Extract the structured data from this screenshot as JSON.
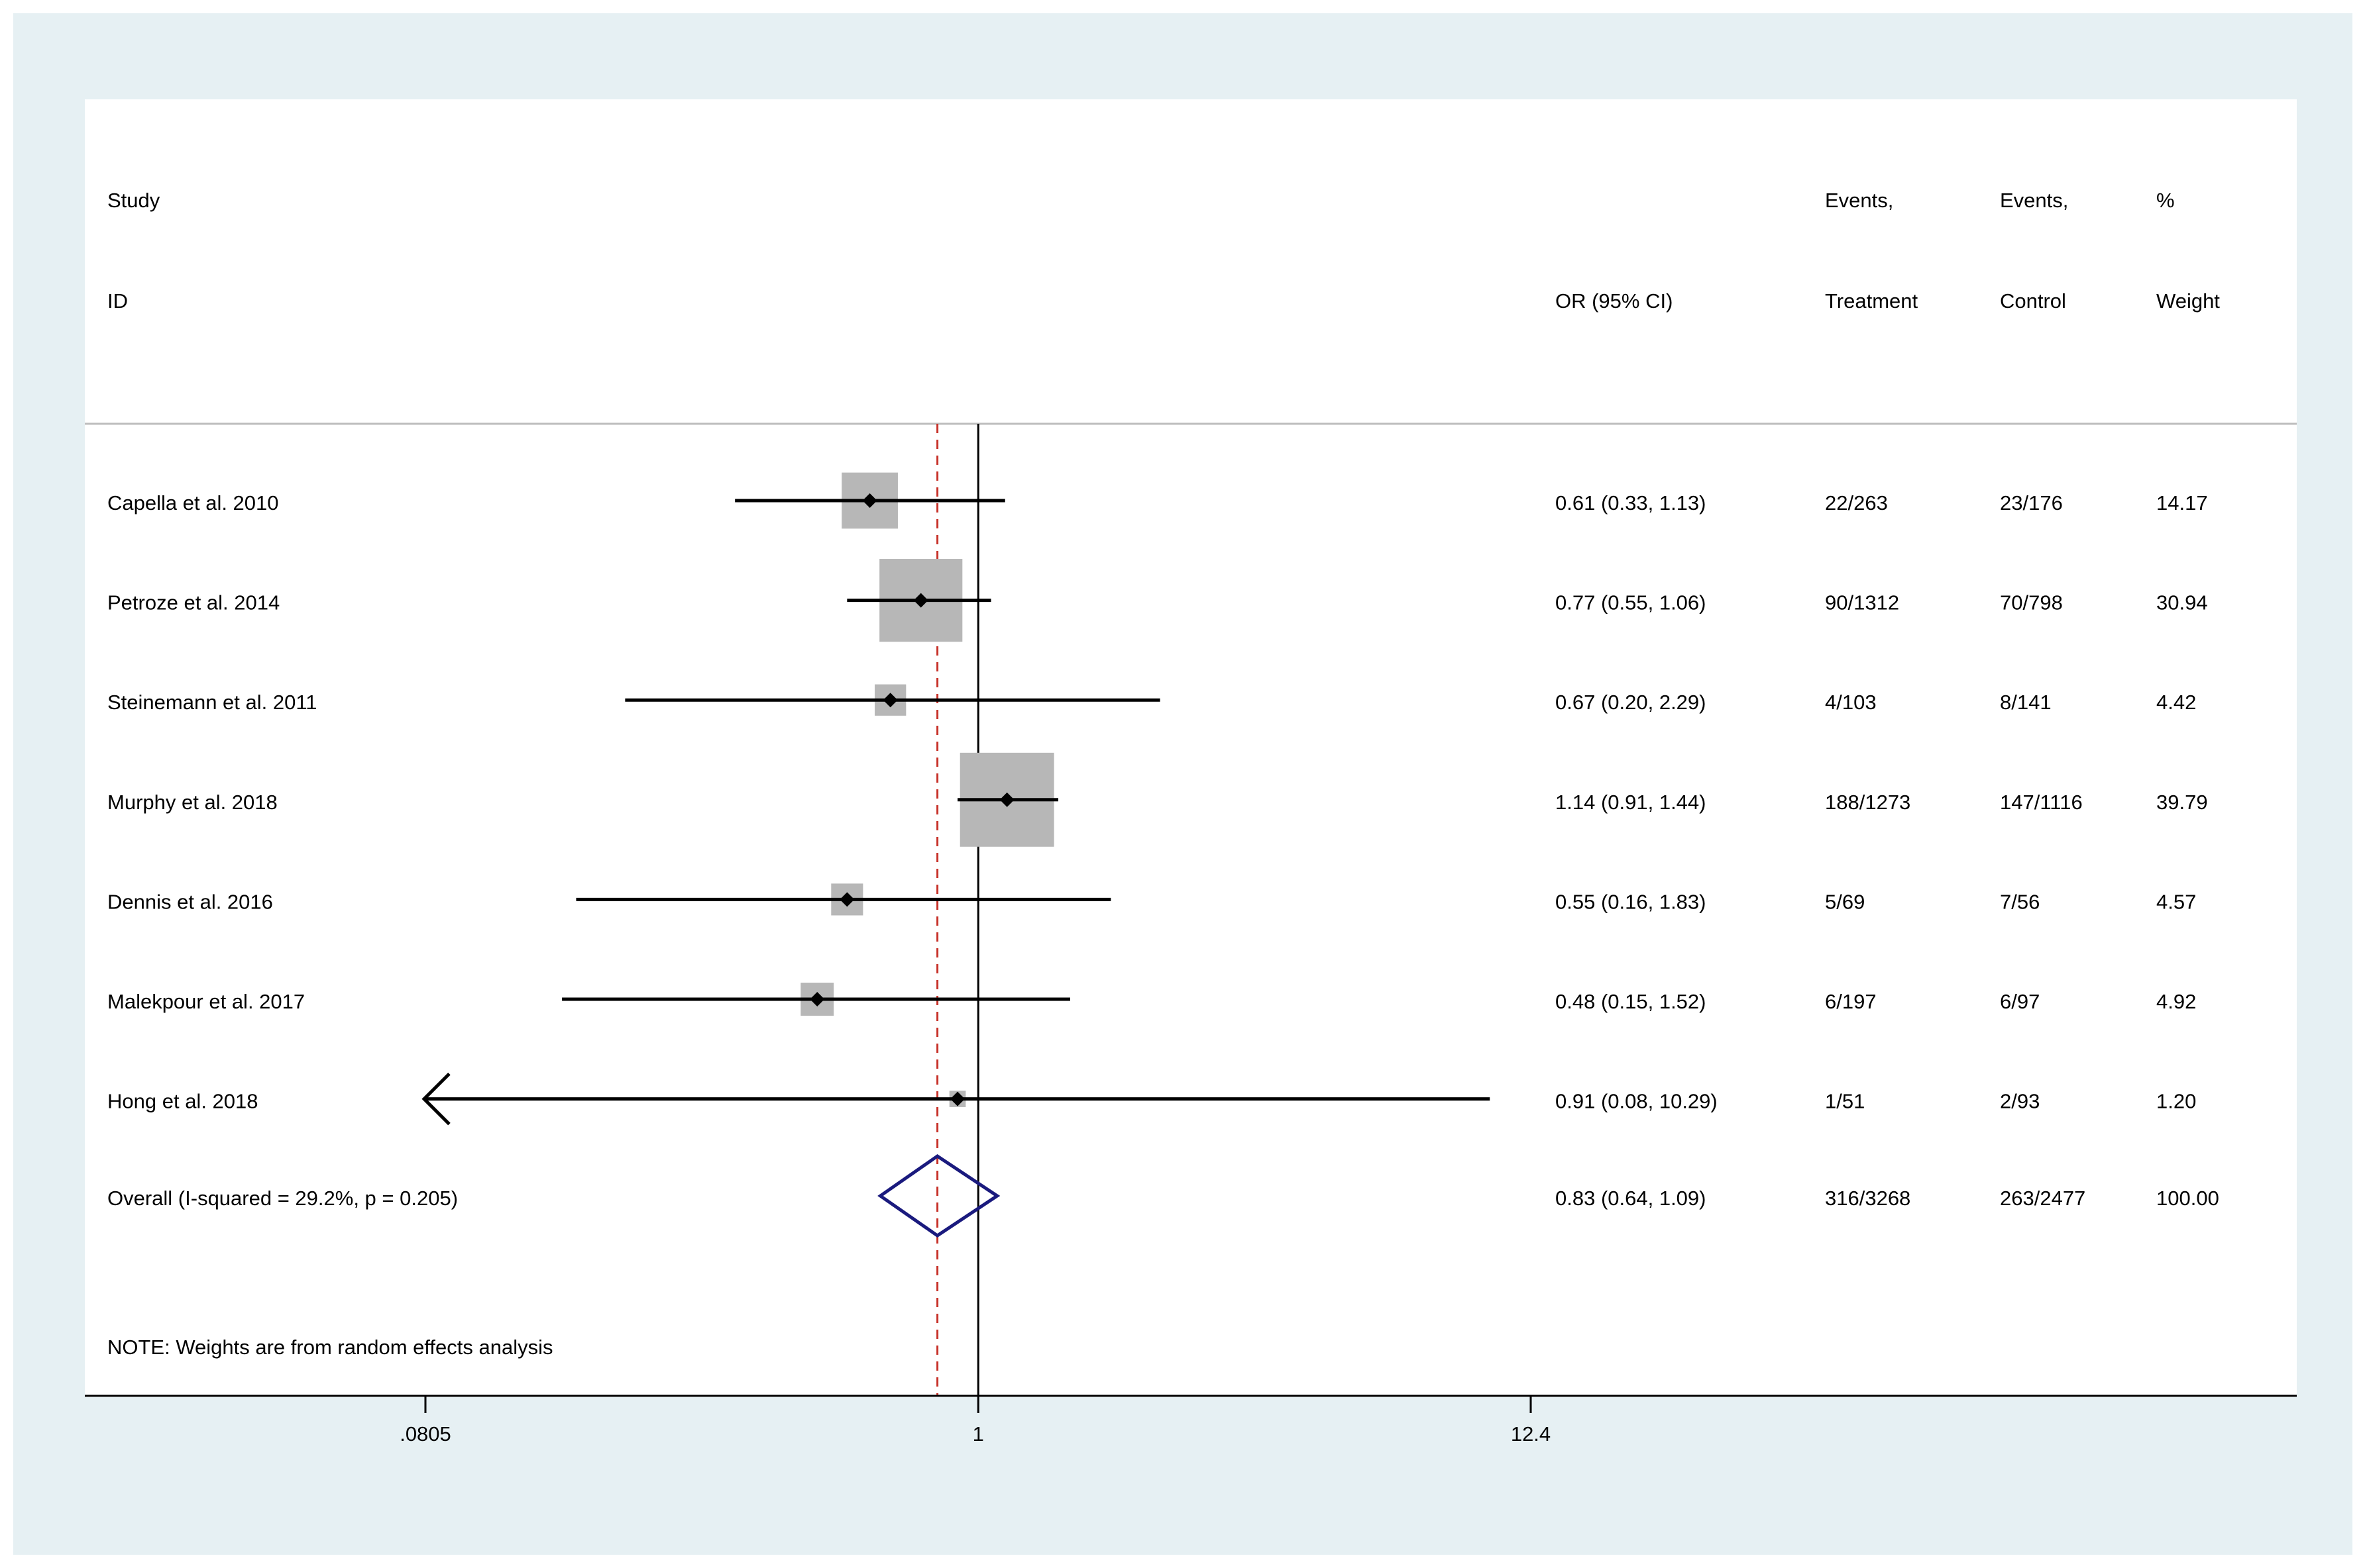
{
  "chart_data": {
    "type": "forest",
    "headers": {
      "study_line1": "Study",
      "study_line2": "ID",
      "or": "OR (95% CI)",
      "events_t_line1": "Events,",
      "events_t_line2": "Treatment",
      "events_c_line1": "Events,",
      "events_c_line2": "Control",
      "weight_line1": "%",
      "weight_line2": "Weight"
    },
    "studies": [
      {
        "name": "Capella et al. 2010",
        "or": 0.61,
        "lo": 0.33,
        "hi": 1.13,
        "or_text": "0.61 (0.33, 1.13)",
        "events_t": "22/263",
        "events_c": "23/176",
        "weight": 14.17,
        "weight_text": "14.17"
      },
      {
        "name": "Petroze et al. 2014",
        "or": 0.77,
        "lo": 0.55,
        "hi": 1.06,
        "or_text": "0.77 (0.55, 1.06)",
        "events_t": "90/1312",
        "events_c": "70/798",
        "weight": 30.94,
        "weight_text": "30.94"
      },
      {
        "name": "Steinemann et al. 2011",
        "or": 0.67,
        "lo": 0.2,
        "hi": 2.29,
        "or_text": "0.67 (0.20, 2.29)",
        "events_t": "4/103",
        "events_c": "8/141",
        "weight": 4.42,
        "weight_text": "4.42"
      },
      {
        "name": "Murphy et al. 2018",
        "or": 1.14,
        "lo": 0.91,
        "hi": 1.44,
        "or_text": "1.14 (0.91, 1.44)",
        "events_t": "188/1273",
        "events_c": "147/1116",
        "weight": 39.79,
        "weight_text": "39.79"
      },
      {
        "name": "Dennis et al. 2016",
        "or": 0.55,
        "lo": 0.16,
        "hi": 1.83,
        "or_text": "0.55 (0.16, 1.83)",
        "events_t": "5/69",
        "events_c": "7/56",
        "weight": 4.57,
        "weight_text": "4.57"
      },
      {
        "name": "Malekpour et al. 2017",
        "or": 0.48,
        "lo": 0.15,
        "hi": 1.52,
        "or_text": "0.48 (0.15, 1.52)",
        "events_t": "6/197",
        "events_c": "6/97",
        "weight": 4.92,
        "weight_text": "4.92"
      },
      {
        "name": "Hong et al. 2018",
        "or": 0.91,
        "lo": 0.08,
        "hi": 10.29,
        "or_text": "0.91 (0.08, 10.29)",
        "events_t": "1/51",
        "events_c": "2/93",
        "weight": 1.2,
        "weight_text": "1.20"
      }
    ],
    "overall": {
      "label": "Overall  (I-squared = 29.2%, p = 0.205)",
      "or": 0.83,
      "lo": 0.64,
      "hi": 1.09,
      "or_text": "0.83 (0.64, 1.09)",
      "events_t": "316/3268",
      "events_c": "263/2477",
      "weight_text": "100.00"
    },
    "note": "NOTE: Weights are from random effects analysis",
    "x_axis": {
      "scale": "log",
      "range": [
        0.0805,
        12.4
      ],
      "ticks": [
        0.0805,
        1,
        12.4
      ],
      "tick_labels": [
        ".0805",
        "1",
        "12.4"
      ],
      "null_line": 1
    },
    "colors": {
      "background": "#e6f0f3",
      "panel": "#ffffff",
      "box": "#b7b7b7",
      "point": "#000000",
      "diamond": "#1a1a7e",
      "overall_line": "#c8342c",
      "separator": "#bdbdbd"
    }
  }
}
